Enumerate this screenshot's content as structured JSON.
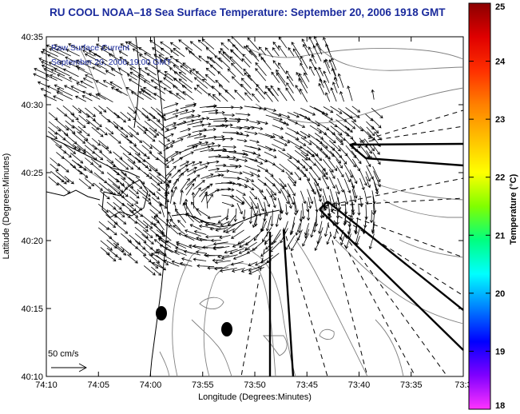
{
  "title": "RU COOL  NOAA–18  Sea Surface Temperature:  September 20, 2006 1918 GMT",
  "annotation": {
    "line1": "Raw Surface Current",
    "line2": "September 20, 2006 19:00 GMT"
  },
  "scale_label": "50 cm/s",
  "axes": {
    "xlabel": "Longitude (Degrees:Minutes)",
    "ylabel": "Latitude (Degrees:Minutes)",
    "xticks": [
      "74:10",
      "74:05",
      "74:00",
      "73:55",
      "73:50",
      "73:45",
      "73:40",
      "73:35",
      "73:3"
    ],
    "yticks": [
      "40:35",
      "40:30",
      "40:25",
      "40:20",
      "40:15",
      "40:10"
    ]
  },
  "colorbar": {
    "label": "Temperature (°C)",
    "ticks": [
      "25",
      "24",
      "23",
      "22",
      "21",
      "20",
      "19",
      "18"
    ],
    "range": [
      18,
      25
    ],
    "colors": [
      "#ff33ff",
      "#8000ff",
      "#0000ff",
      "#0080ff",
      "#00ffff",
      "#00ff80",
      "#80ff00",
      "#ffff00",
      "#ffc000",
      "#ff8000",
      "#ff3000",
      "#e00000",
      "#8b0000"
    ]
  },
  "colors": {
    "title": "#1a2a9c",
    "coastline": "#000000",
    "bathymetry": "#777777"
  }
}
